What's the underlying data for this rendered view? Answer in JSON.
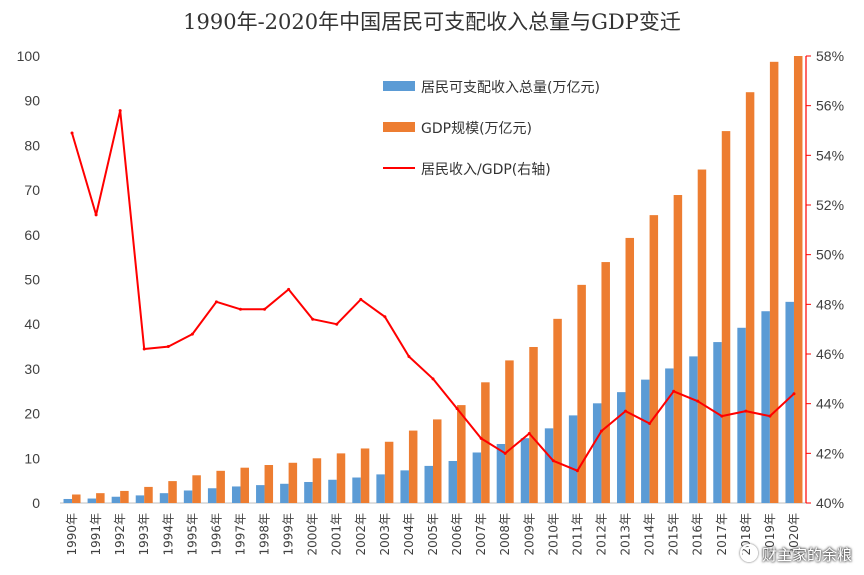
{
  "chart_data": {
    "type": "bar+line",
    "title": "1990年-2020年中国居民可支配收入总量与GDP变迁",
    "categories": [
      "1990年",
      "1991年",
      "1992年",
      "1993年",
      "1994年",
      "1995年",
      "1996年",
      "1997年",
      "1998年",
      "1999年",
      "2000年",
      "2001年",
      "2002年",
      "2003年",
      "2004年",
      "2005年",
      "2006年",
      "2007年",
      "2008年",
      "2009年",
      "2010年",
      "2011年",
      "2012年",
      "2013年",
      "2014年",
      "2015年",
      "2016年",
      "2017年",
      "2018年",
      "2019年",
      "2020年"
    ],
    "series": [
      {
        "name": "居民可支配收入总量(万亿元)",
        "type": "bar",
        "axis": "left",
        "color": "#5b9bd5",
        "values": [
          0.9,
          1.0,
          1.4,
          1.7,
          2.2,
          2.8,
          3.3,
          3.7,
          4.0,
          4.3,
          4.7,
          5.2,
          5.7,
          6.4,
          7.3,
          8.3,
          9.4,
          11.3,
          13.2,
          14.5,
          16.7,
          19.6,
          22.3,
          24.8,
          27.6,
          30.1,
          32.8,
          36.0,
          39.2,
          42.9,
          45.0
        ]
      },
      {
        "name": "GDP规模(万亿元)",
        "type": "bar",
        "axis": "left",
        "color": "#ed7d31",
        "values": [
          1.9,
          2.2,
          2.7,
          3.6,
          4.9,
          6.2,
          7.2,
          7.9,
          8.5,
          9.0,
          10.0,
          11.1,
          12.2,
          13.7,
          16.2,
          18.7,
          21.9,
          27.0,
          31.9,
          34.9,
          41.2,
          48.8,
          53.9,
          59.3,
          64.4,
          68.9,
          74.6,
          83.2,
          91.9,
          98.7,
          101.4
        ]
      },
      {
        "name": "居民收入/GDP(右轴)",
        "type": "line",
        "axis": "right",
        "color": "#ff0000",
        "values": [
          54.9,
          51.6,
          55.8,
          46.2,
          46.3,
          46.8,
          48.1,
          47.8,
          47.8,
          48.6,
          47.4,
          47.2,
          48.2,
          47.5,
          45.9,
          45.0,
          43.8,
          42.6,
          42.0,
          42.8,
          41.7,
          41.3,
          42.9,
          43.7,
          43.2,
          44.5,
          44.1,
          43.5,
          43.7,
          43.5,
          44.4
        ]
      }
    ],
    "yaxis_left": {
      "min": 0,
      "max": 100,
      "step": 10,
      "tick_labels": [
        "0",
        "10",
        "20",
        "30",
        "40",
        "50",
        "60",
        "70",
        "80",
        "90",
        "100"
      ]
    },
    "yaxis_right": {
      "min": 40,
      "max": 58,
      "step": 2,
      "unit": "%",
      "tick_labels": [
        "40%",
        "42%",
        "44%",
        "46%",
        "48%",
        "50%",
        "52%",
        "54%",
        "56%",
        "58%"
      ]
    },
    "grid": false,
    "legend_position": "top-left inside plot",
    "watermark": "财主家的余粮"
  }
}
